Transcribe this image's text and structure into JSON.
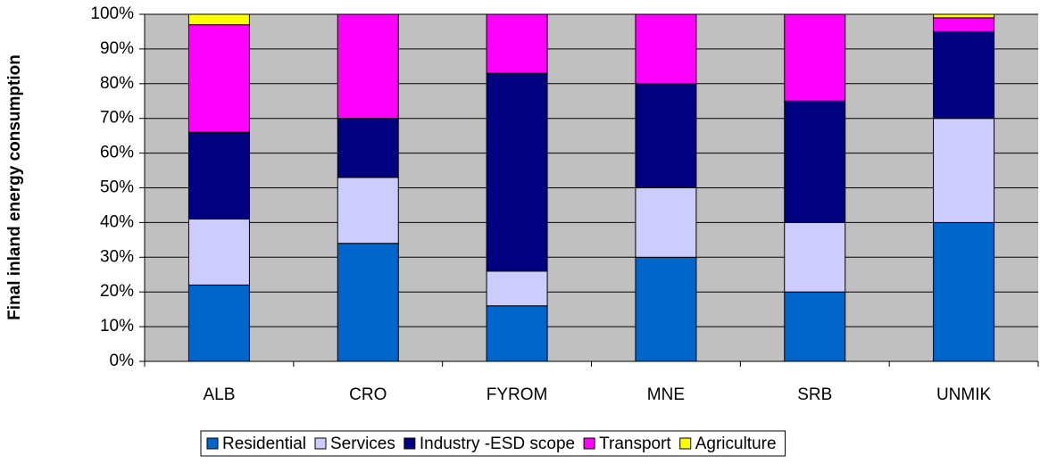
{
  "chart_data": {
    "type": "stacked_bar",
    "y_label": "Final inland energy consumption",
    "categories": [
      "ALB",
      "CRO",
      "FYROM",
      "MNE",
      "SRB",
      "UNMIK"
    ],
    "series": [
      {
        "name": "Residential",
        "color": "#0066cc",
        "values": [
          22,
          34,
          16,
          30,
          20,
          40
        ]
      },
      {
        "name": "Services",
        "color": "#ccccff",
        "values": [
          19,
          19,
          10,
          20,
          20,
          30
        ]
      },
      {
        "name": "Industry -ESD scope",
        "color": "#000080",
        "values": [
          25,
          17,
          57,
          30,
          35,
          25
        ]
      },
      {
        "name": "Transport",
        "color": "#ff00ff",
        "values": [
          31,
          30,
          17,
          20,
          25,
          4
        ]
      },
      {
        "name": "Agriculture",
        "color": "#ffff00",
        "values": [
          3,
          0,
          0,
          0,
          0,
          1
        ]
      }
    ],
    "ylim": [
      0,
      100
    ],
    "yticks": [
      {
        "value": 0,
        "label": "0%"
      },
      {
        "value": 10,
        "label": "10%"
      },
      {
        "value": 20,
        "label": "20%"
      },
      {
        "value": 30,
        "label": "30%"
      },
      {
        "value": 40,
        "label": "40%"
      },
      {
        "value": 50,
        "label": "50%"
      },
      {
        "value": 60,
        "label": "60%"
      },
      {
        "value": 70,
        "label": "70%"
      },
      {
        "value": 80,
        "label": "80%"
      },
      {
        "value": 90,
        "label": "90%"
      },
      {
        "value": 100,
        "label": "100%"
      }
    ],
    "grid": true
  }
}
